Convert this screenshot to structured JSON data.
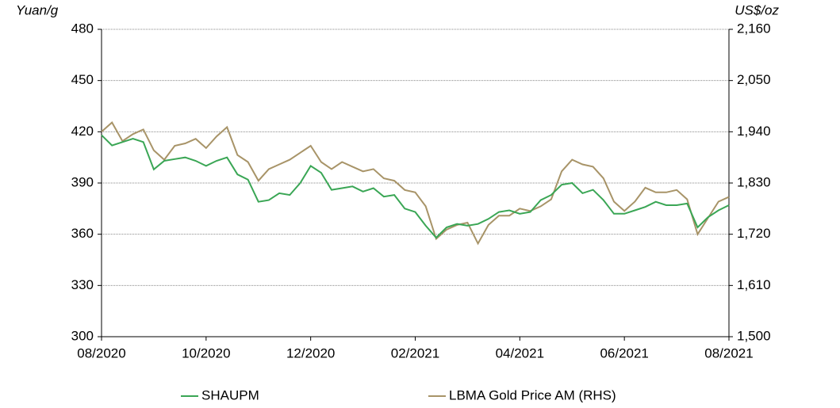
{
  "chart_data": {
    "type": "line",
    "y_label": "Yuan/g",
    "y2_label": "US$/oz",
    "categories": [
      "08/2020",
      null,
      null,
      null,
      null,
      null,
      null,
      null,
      null,
      null,
      "10/2020",
      null,
      null,
      null,
      null,
      null,
      null,
      null,
      null,
      null,
      "12/2020",
      null,
      null,
      null,
      null,
      null,
      null,
      null,
      null,
      null,
      "02/2021",
      null,
      null,
      null,
      null,
      null,
      null,
      null,
      null,
      null,
      "04/2021",
      null,
      null,
      null,
      null,
      null,
      null,
      null,
      null,
      null,
      "06/2021",
      null,
      null,
      null,
      null,
      null,
      null,
      null,
      null,
      null,
      "08/2021"
    ],
    "ylim": [
      300,
      480
    ],
    "yticks": [
      300,
      330,
      360,
      390,
      420,
      450,
      480
    ],
    "y2lim": [
      1500,
      2160
    ],
    "y2ticks": [
      {
        "value": 1500,
        "label": "1,500"
      },
      {
        "value": 1610,
        "label": "1,610"
      },
      {
        "value": 1720,
        "label": "1,720"
      },
      {
        "value": 1830,
        "label": "1,830"
      },
      {
        "value": 1940,
        "label": "1,940"
      },
      {
        "value": 2050,
        "label": "2,050"
      },
      {
        "value": 2160,
        "label": "2,160"
      }
    ],
    "grid": true,
    "legend": "bottom",
    "series": [
      {
        "name": "SHAUPM",
        "color": "#3aa655",
        "values": [
          418,
          412,
          414,
          416,
          414,
          398,
          403,
          404,
          405,
          403,
          400,
          403,
          405,
          395,
          392,
          379,
          380,
          384,
          383,
          390,
          400,
          396,
          386,
          387,
          388,
          385,
          387,
          382,
          383,
          375,
          373,
          365,
          358,
          364,
          366,
          365,
          366,
          369,
          373,
          374,
          372,
          373,
          380,
          383,
          389,
          390,
          384,
          386,
          380,
          372,
          372,
          374,
          376,
          379,
          377,
          377,
          378,
          364,
          370,
          374,
          377
        ]
      },
      {
        "name": "LBMA Gold Price AM (RHS)",
        "color": "#a89468",
        "axis": "y2",
        "values": [
          1940,
          1960,
          1920,
          1935,
          1945,
          1900,
          1880,
          1910,
          1915,
          1925,
          1905,
          1930,
          1950,
          1890,
          1875,
          1835,
          1860,
          1870,
          1880,
          1895,
          1910,
          1875,
          1860,
          1875,
          1865,
          1855,
          1860,
          1840,
          1835,
          1815,
          1810,
          1780,
          1710,
          1730,
          1740,
          1745,
          1700,
          1740,
          1760,
          1760,
          1775,
          1770,
          1780,
          1795,
          1855,
          1880,
          1870,
          1865,
          1840,
          1790,
          1770,
          1790,
          1820,
          1810,
          1810,
          1815,
          1795,
          1720,
          1755,
          1790,
          1800
        ]
      }
    ]
  }
}
